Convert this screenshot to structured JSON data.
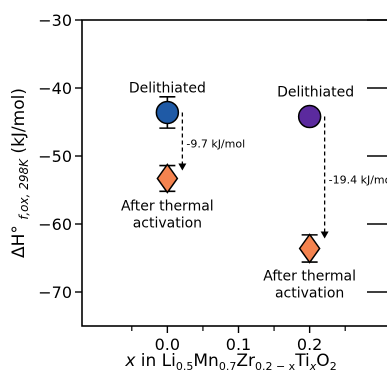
{
  "chart_data": {
    "type": "scatter",
    "xlabel_main": "x in Li",
    "xlabel_subs": [
      "0.5",
      "0.7",
      "0.2 − x",
      "x",
      "2"
    ],
    "xlabel_elems": [
      "Mn",
      "Zr",
      "Ti",
      "O"
    ],
    "ylabel": "ΔH° f,ox, 298K (kJ/mol)",
    "x_range": [
      -0.12,
      0.32
    ],
    "y_range": [
      -75,
      -30
    ],
    "x_ticks": [
      0.0,
      0.1,
      0.2
    ],
    "x_tick_labels": [
      "0.0",
      "0.1",
      "0.2"
    ],
    "x_minor_ticks": [
      -0.05,
      0.05,
      0.15,
      0.25
    ],
    "y_ticks": [
      -30,
      -40,
      -50,
      -60,
      -70
    ],
    "y_tick_labels": [
      "−30",
      "−40",
      "−50",
      "−60",
      "−70"
    ],
    "series": [
      {
        "x": 0.0,
        "delithiated": {
          "y": -43.6,
          "err": 2.3,
          "color": "#1f5aa6",
          "label": "Delithiated"
        },
        "activated": {
          "y": -53.3,
          "err": 1.9,
          "color": "#f4834f",
          "label_line1": "After thermal",
          "label_line2": "activation"
        },
        "delta_label": "-9.7 kJ/mol"
      },
      {
        "x": 0.2,
        "delithiated": {
          "y": -44.2,
          "err": 1.1,
          "color": "#5b2a9e",
          "label": "Delithiated"
        },
        "activated": {
          "y": -63.6,
          "err": 2.0,
          "color": "#f4834f",
          "label_line1": "After thermal",
          "label_line2": "activation"
        },
        "delta_label": "-19.4 kJ/mol"
      }
    ],
    "grid": false,
    "legend": "none"
  }
}
